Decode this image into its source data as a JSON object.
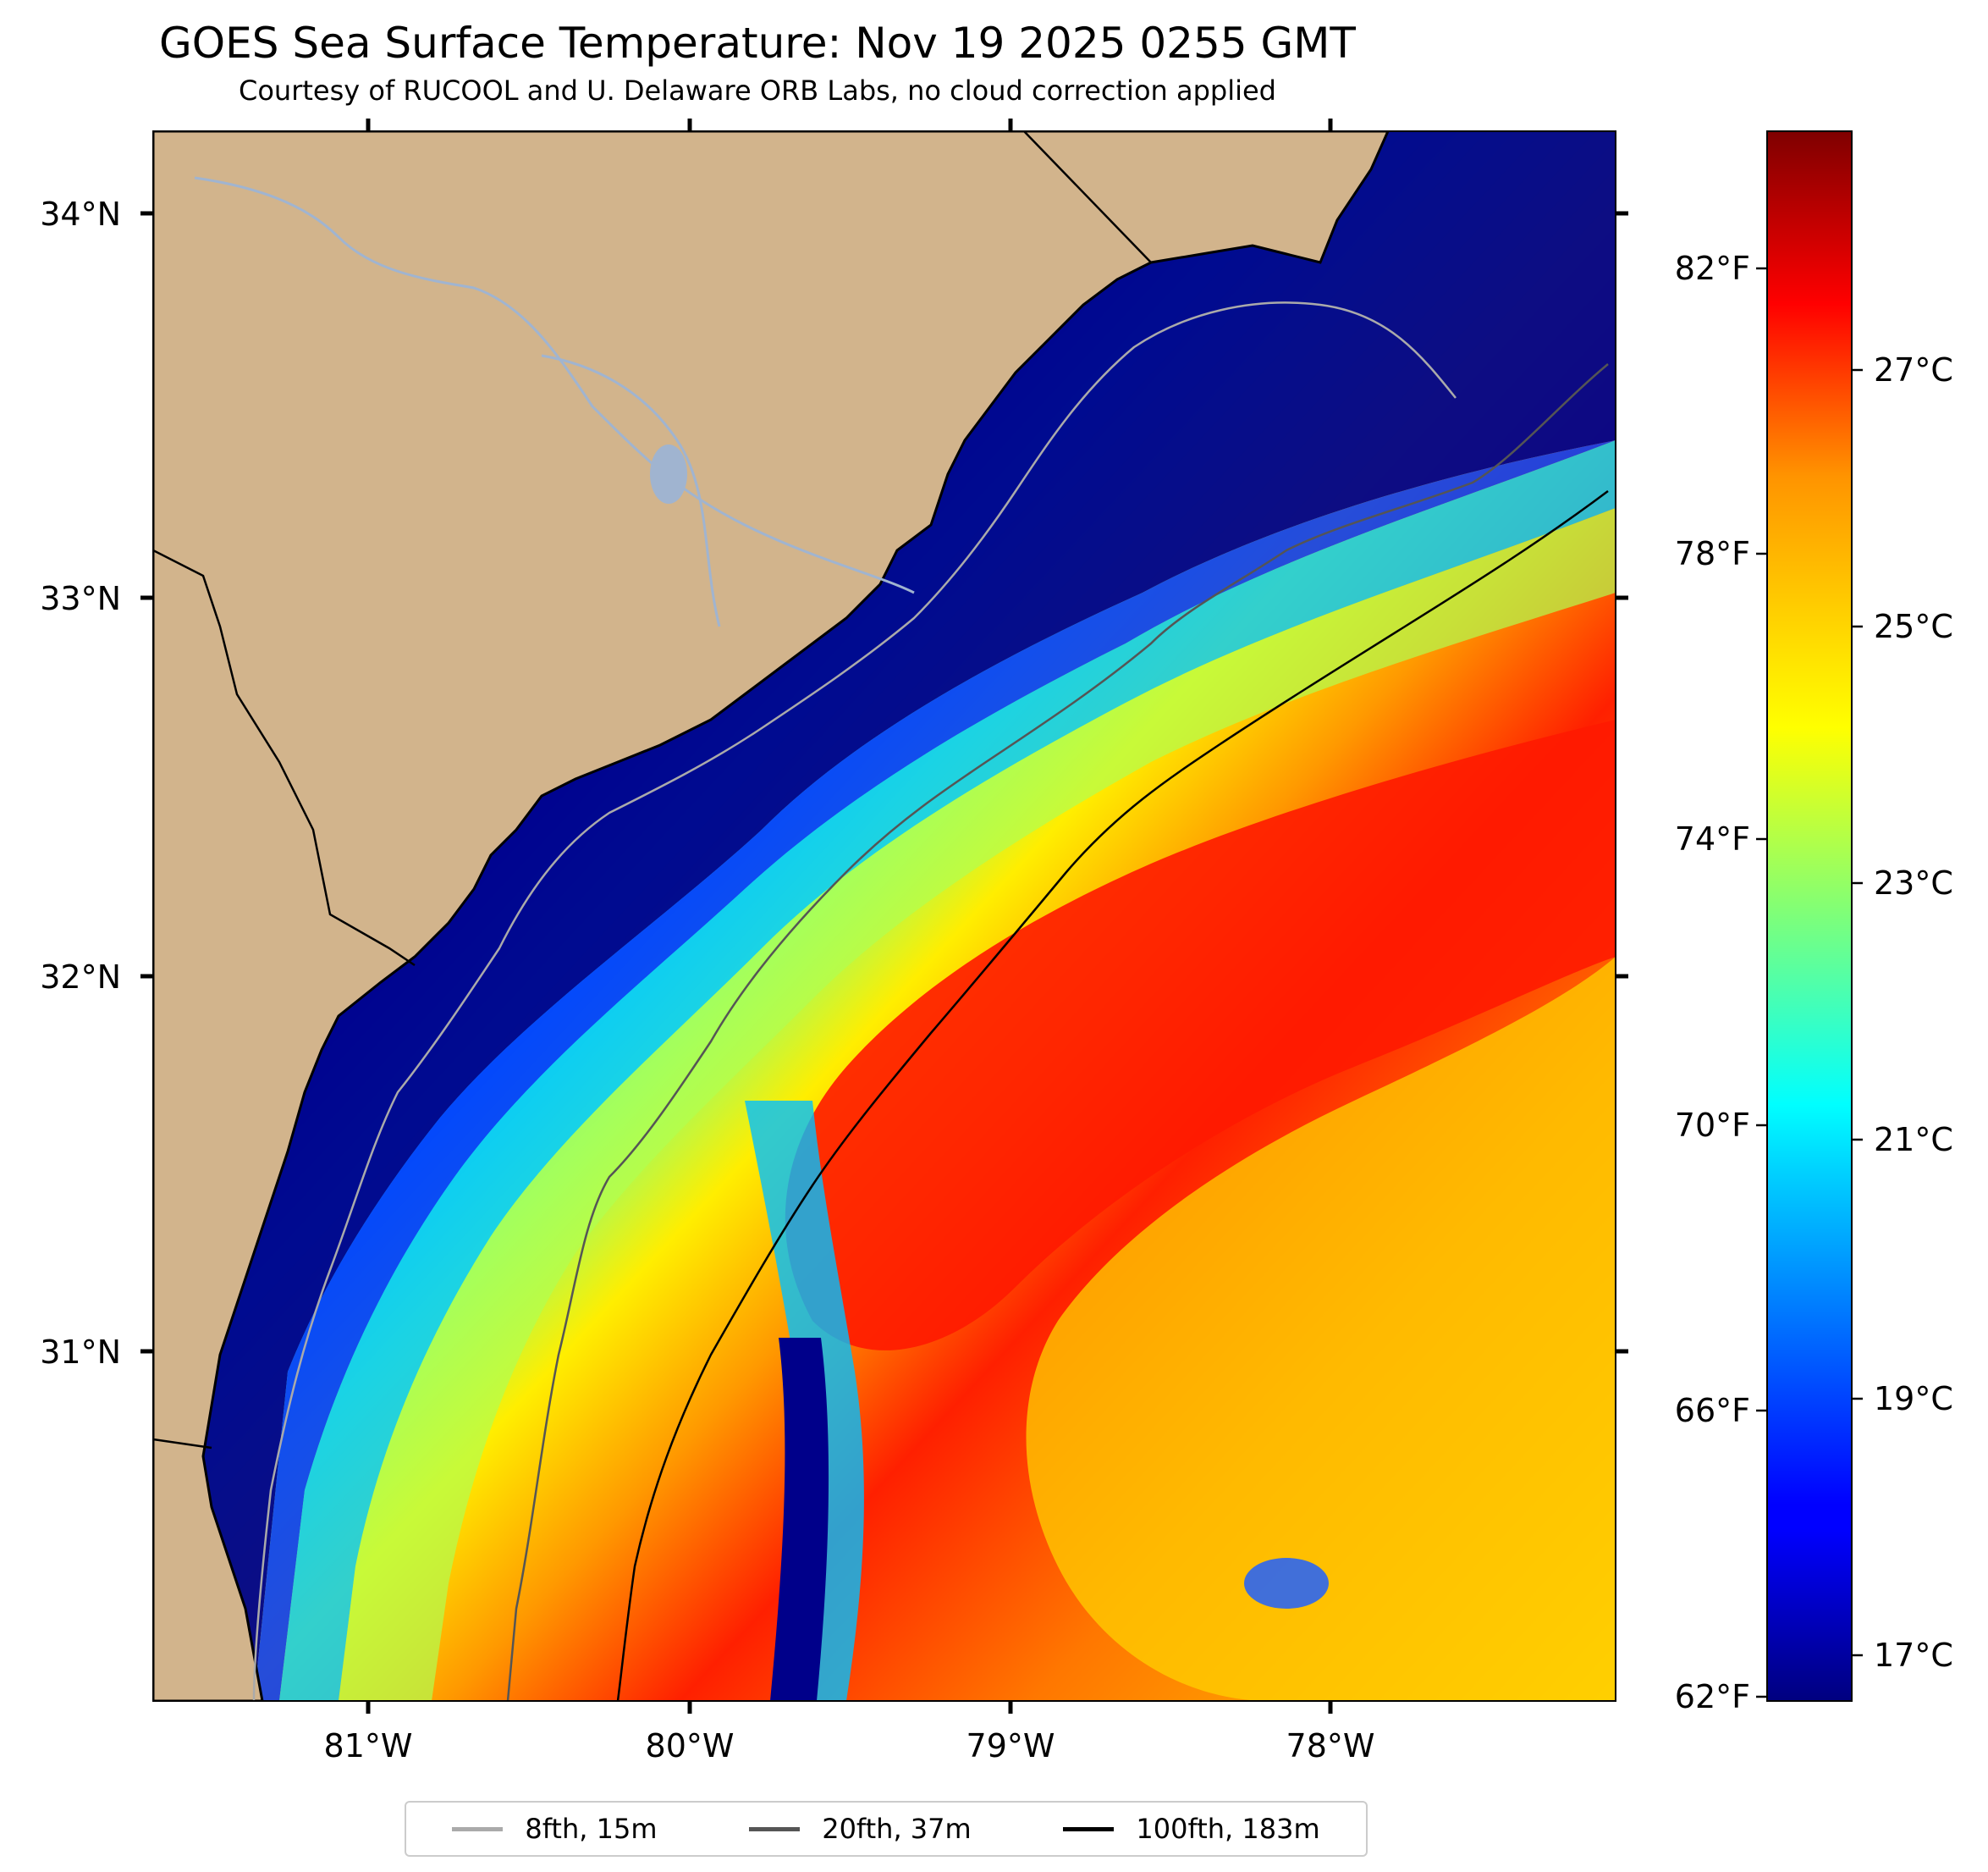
{
  "title": "GOES Sea Surface Temperature: Nov 19 2025 0255 GMT",
  "subtitle": "Courtesy of RUCOOL and U. Delaware ORB Labs, no cloud correction applied",
  "map": {
    "lat_range": [
      30.17,
      34.2
    ],
    "lon_range": [
      -81.67,
      -77.1
    ],
    "land_color": "#d2b48c",
    "lat_ticks": [
      "31°N",
      "32°N",
      "33°N",
      "34°N"
    ],
    "lon_ticks": [
      "81°W",
      "80°W",
      "79°W",
      "78°W"
    ]
  },
  "colorbar": {
    "colormap": "jet",
    "celsius_labels": [
      "17°C",
      "19°C",
      "21°C",
      "23°C",
      "25°C",
      "27°C"
    ],
    "fahrenheit_labels": [
      "62°F",
      "66°F",
      "70°F",
      "74°F",
      "78°F",
      "82°F"
    ]
  },
  "legend": [
    {
      "label": "8fth, 15m",
      "color": "#aaaaaa"
    },
    {
      "label": "20fth, 37m",
      "color": "#555555"
    },
    {
      "label": "100fth, 183m",
      "color": "#000000"
    }
  ]
}
